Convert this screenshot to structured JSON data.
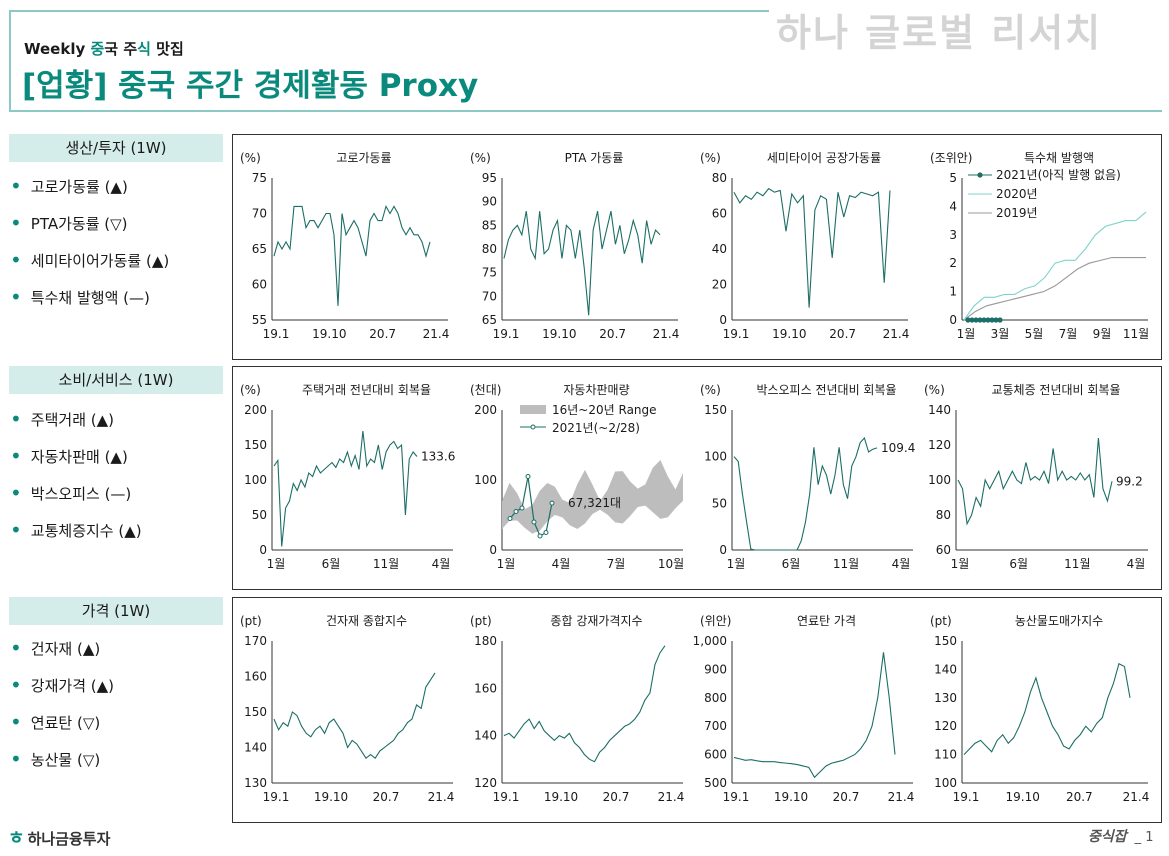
{
  "header": {
    "brand": "하나 글로벌 리서치",
    "weekly_prefix": "Weekly ",
    "weekly_word1": "중",
    "weekly_word2": "국 주",
    "weekly_word3": "식",
    "weekly_word4": " 맛집",
    "title": "[업황] 중국 주간 경제활동 Proxy"
  },
  "colors": {
    "accent": "#0a8a7d",
    "line": "#1c6e66",
    "light": "#7fd3cc",
    "gray": "#999999",
    "band": "#bdbdbd"
  },
  "sections": [
    {
      "label": "생산/투자 (1W)",
      "items": [
        "고로가동률 (▲)",
        "PTA가동률 (▽)",
        "세미타이어가동률 (▲)",
        "특수채 발행액 (—)"
      ]
    },
    {
      "label": "소비/서비스 (1W)",
      "items": [
        "주택거래 (▲)",
        "자동차판매 (▲)",
        "박스오피스 (—)",
        "교통체증지수 (▲)"
      ]
    },
    {
      "label": "가격 (1W)",
      "items": [
        "건자재 (▲)",
        "강재가격 (▲)",
        "연료탄 (▽)",
        "농산물 (▽)"
      ]
    }
  ],
  "chart_data": [
    {
      "id": "blast",
      "type": "line",
      "title": "고로가동률",
      "unit": "(%)",
      "ylim": [
        55,
        75
      ],
      "yticks": [
        "75",
        "70",
        "65",
        "60",
        "55"
      ],
      "xticks": [
        "19.1",
        "19.10",
        "20.7",
        "21.4"
      ],
      "series": [
        {
          "name": "고로가동률",
          "values": [
            64,
            66,
            65,
            66,
            65,
            71,
            71,
            71,
            68,
            69,
            69,
            68,
            69,
            70,
            70,
            67,
            57,
            70,
            67,
            68,
            69,
            68,
            66,
            64,
            69,
            70,
            69,
            69,
            71,
            70,
            71,
            70,
            68,
            67,
            68,
            67,
            67,
            66,
            64,
            66
          ]
        }
      ]
    },
    {
      "id": "pta",
      "type": "line",
      "title": "PTA 가동률",
      "unit": "(%)",
      "ylim": [
        65,
        95
      ],
      "yticks": [
        "95",
        "90",
        "85",
        "80",
        "75",
        "70",
        "65"
      ],
      "xticks": [
        "19.1",
        "19.10",
        "20.7",
        "21.4"
      ],
      "series": [
        {
          "name": "PTA 가동률",
          "values": [
            78,
            82,
            84,
            85,
            83,
            88,
            80,
            78,
            88,
            79,
            80,
            84,
            86,
            78,
            85,
            84,
            78,
            84,
            76,
            66,
            84,
            88,
            80,
            84,
            88,
            81,
            85,
            79,
            82,
            86,
            83,
            77,
            86,
            81,
            84,
            83
          ]
        }
      ]
    },
    {
      "id": "tire",
      "type": "line",
      "title": "세미타이어 공장가동률",
      "unit": "(%)",
      "ylim": [
        0,
        80
      ],
      "yticks": [
        "80",
        "60",
        "40",
        "20",
        "0"
      ],
      "xticks": [
        "19.1",
        "19.10",
        "20.7",
        "21.4"
      ],
      "series": [
        {
          "name": "세미타이어 공장가동률",
          "values": [
            72,
            66,
            70,
            68,
            72,
            70,
            74,
            72,
            73,
            50,
            71,
            66,
            70,
            7,
            62,
            70,
            68,
            35,
            72,
            58,
            70,
            69,
            72,
            71,
            70,
            72,
            21,
            73
          ]
        }
      ]
    },
    {
      "id": "bond",
      "type": "line",
      "title": "특수채 발행액",
      "unit": "(조위안)",
      "ylim": [
        0,
        5
      ],
      "yticks": [
        "5",
        "4",
        "3",
        "2",
        "1",
        "0"
      ],
      "xticks": [
        "1월",
        "3월",
        "5월",
        "7월",
        "9월",
        "11월"
      ],
      "series": [
        {
          "name": "2021년(아직 발행 없음)",
          "values": [
            0,
            0,
            0,
            0,
            0,
            0,
            0,
            0,
            0
          ]
        },
        {
          "name": "2020년",
          "values": [
            0,
            0.5,
            0.8,
            0.8,
            0.9,
            0.9,
            1.1,
            1.2,
            1.5,
            2,
            2.1,
            2.1,
            2.5,
            3,
            3.3,
            3.4,
            3.5,
            3.5,
            3.8
          ]
        },
        {
          "name": "2019년",
          "values": [
            0,
            0.3,
            0.5,
            0.6,
            0.7,
            0.8,
            0.9,
            1.0,
            1.2,
            1.5,
            1.8,
            2.0,
            2.1,
            2.2,
            2.2,
            2.2,
            2.2
          ]
        }
      ]
    },
    {
      "id": "housing",
      "type": "line",
      "title": "주택거래 전년대비 회복율",
      "unit": "(%)",
      "ylim": [
        0,
        200
      ],
      "yticks": [
        "200",
        "150",
        "100",
        "50",
        "0"
      ],
      "xticks": [
        "1월",
        "6월",
        "11월",
        "4월"
      ],
      "label": "133.6",
      "series": [
        {
          "name": "주택거래",
          "values": [
            120,
            128,
            5,
            60,
            70,
            95,
            85,
            100,
            90,
            110,
            105,
            120,
            110,
            115,
            120,
            125,
            118,
            130,
            125,
            140,
            120,
            135,
            115,
            170,
            120,
            130,
            125,
            150,
            115,
            140,
            150,
            155,
            145,
            150,
            50,
            130,
            140,
            133.6
          ]
        }
      ]
    },
    {
      "id": "auto",
      "type": "line",
      "title": "자동차판매량",
      "unit": "(천대)",
      "ylim": [
        0,
        200
      ],
      "yticks": [
        "200",
        "100",
        "0"
      ],
      "xticks": [
        "1월",
        "4월",
        "7월",
        "10월"
      ],
      "label": "67,321대",
      "series": [
        {
          "name": "16년~20년 Range",
          "values": []
        },
        {
          "name": "2021년(~2/28)",
          "values": [
            45,
            55,
            60,
            105,
            40,
            20,
            25,
            67
          ]
        }
      ]
    },
    {
      "id": "box",
      "type": "line",
      "title": "박스오피스 전년대비 회복율",
      "unit": "(%)",
      "ylim": [
        0,
        150
      ],
      "yticks": [
        "150",
        "100",
        "50",
        "0"
      ],
      "xticks": [
        "1월",
        "6월",
        "11월",
        "4월"
      ],
      "label": "109.4",
      "series": [
        {
          "name": "박스오피스",
          "values": [
            100,
            95,
            60,
            30,
            1,
            0,
            0,
            0,
            0,
            0,
            0,
            0,
            0,
            0,
            0,
            0,
            10,
            30,
            60,
            110,
            70,
            90,
            80,
            60,
            80,
            110,
            70,
            55,
            90,
            100,
            115,
            120,
            105,
            108,
            109.4
          ]
        }
      ]
    },
    {
      "id": "traffic",
      "type": "line",
      "title": "교통체증 전년대비 회복율",
      "unit": "(%)",
      "ylim": [
        60,
        140
      ],
      "yticks": [
        "140",
        "120",
        "100",
        "80",
        "60"
      ],
      "xticks": [
        "1월",
        "6월",
        "11월",
        "4월"
      ],
      "label": "99.2",
      "series": [
        {
          "name": "교통체증",
          "values": [
            100,
            95,
            75,
            80,
            90,
            85,
            100,
            95,
            100,
            105,
            95,
            100,
            105,
            100,
            98,
            110,
            100,
            102,
            100,
            105,
            98,
            118,
            100,
            105,
            100,
            102,
            100,
            104,
            100,
            103,
            90,
            124,
            95,
            88,
            99.2
          ]
        }
      ]
    },
    {
      "id": "build",
      "type": "line",
      "title": "건자재 종합지수",
      "unit": "(pt)",
      "ylim": [
        130,
        170
      ],
      "yticks": [
        "170",
        "160",
        "150",
        "140",
        "130"
      ],
      "xticks": [
        "19.1",
        "19.10",
        "20.7",
        "21.4"
      ],
      "series": [
        {
          "name": "건자재 종합지수",
          "values": [
            148,
            145,
            147,
            146,
            150,
            149,
            146,
            144,
            143,
            145,
            146,
            144,
            147,
            148,
            146,
            144,
            140,
            142,
            141,
            139,
            137,
            138,
            137,
            139,
            140,
            141,
            142,
            144,
            145,
            147,
            148,
            152,
            151,
            157,
            159,
            161
          ]
        }
      ]
    },
    {
      "id": "steel",
      "type": "line",
      "title": "종합 강재가격지수",
      "unit": "(pt)",
      "ylim": [
        120,
        180
      ],
      "yticks": [
        "180",
        "160",
        "140",
        "120"
      ],
      "xticks": [
        "19.1",
        "19.10",
        "20.7",
        "21.4"
      ],
      "series": [
        {
          "name": "종합 강재가격지수",
          "values": [
            140,
            141,
            139,
            142,
            145,
            147,
            143,
            146,
            142,
            140,
            138,
            140,
            139,
            141,
            137,
            135,
            132,
            130,
            129,
            133,
            135,
            138,
            140,
            142,
            144,
            145,
            147,
            150,
            155,
            158,
            170,
            175,
            178
          ]
        }
      ]
    },
    {
      "id": "coal",
      "type": "line",
      "title": "연료탄 가격",
      "unit": "(위안)",
      "ylim": [
        500,
        1000
      ],
      "yticks": [
        "1,000",
        "900",
        "800",
        "700",
        "600",
        "500"
      ],
      "xticks": [
        "19.1",
        "19.10",
        "20.7",
        "21.4"
      ],
      "series": [
        {
          "name": "연료탄 가격",
          "values": [
            590,
            585,
            580,
            582,
            578,
            575,
            575,
            575,
            572,
            570,
            568,
            565,
            560,
            555,
            520,
            540,
            560,
            570,
            575,
            580,
            590,
            600,
            620,
            650,
            700,
            800,
            960,
            800,
            600
          ]
        }
      ]
    },
    {
      "id": "agri",
      "type": "line",
      "title": "농산물도매가지수",
      "unit": "(pt)",
      "ylim": [
        100,
        150
      ],
      "yticks": [
        "150",
        "140",
        "130",
        "120",
        "110",
        "100"
      ],
      "xticks": [
        "19.1",
        "19.10",
        "20.7",
        "21.4"
      ],
      "series": [
        {
          "name": "농산물도매가지수",
          "values": [
            110,
            112,
            114,
            115,
            113,
            111,
            115,
            117,
            114,
            116,
            120,
            125,
            132,
            137,
            130,
            125,
            120,
            117,
            113,
            112,
            115,
            117,
            120,
            118,
            121,
            123,
            130,
            135,
            142,
            141,
            130
          ]
        }
      ]
    }
  ],
  "footer": {
    "logo": "하나금융투자",
    "logo_mark": "ㅎ",
    "signature": "중식잡",
    "page": "_ 1"
  }
}
